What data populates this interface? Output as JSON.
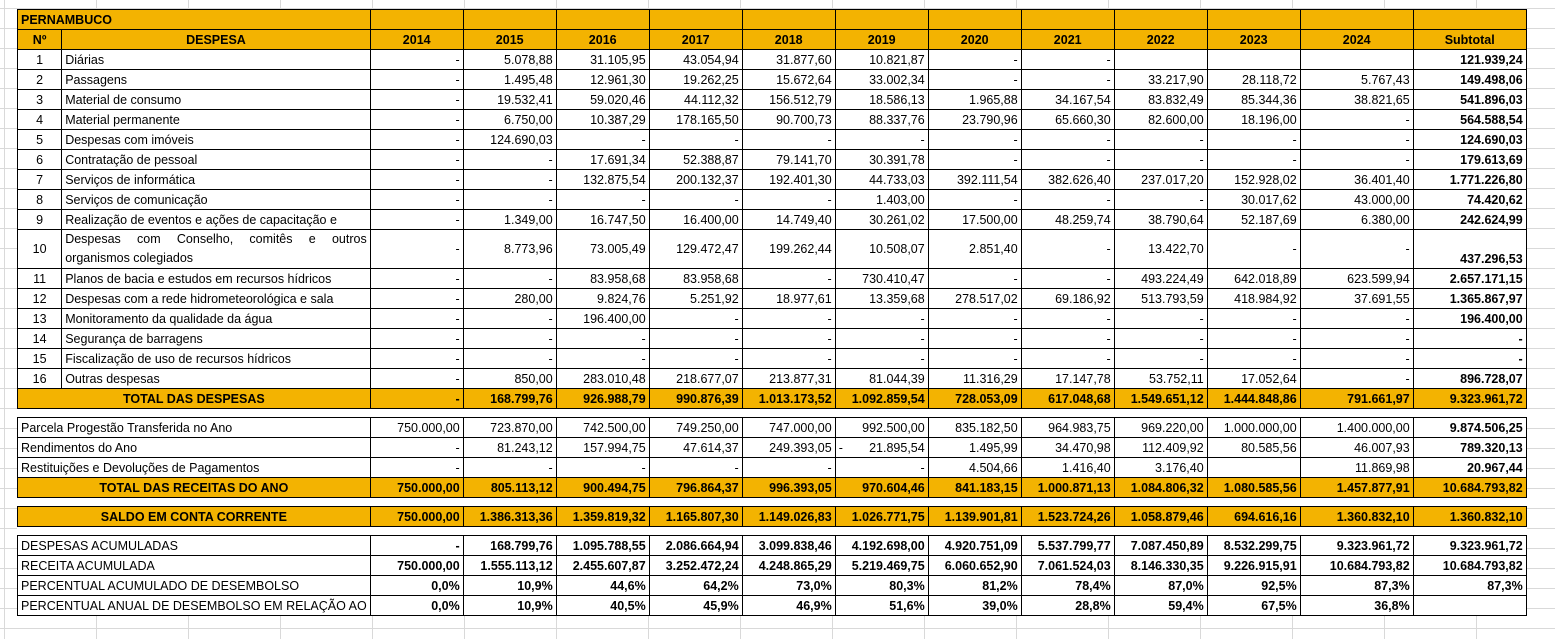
{
  "title": "PERNAMBUCO",
  "headers": [
    "Nº",
    "DESPESA",
    "2014",
    "2015",
    "2016",
    "2017",
    "2018",
    "2019",
    "2020",
    "2021",
    "2022",
    "2023",
    "2024",
    "Subtotal"
  ],
  "expenses": [
    {
      "n": "1",
      "name": "Diárias",
      "values": [
        "-",
        "5.078,88",
        "31.105,95",
        "43.054,94",
        "31.877,60",
        "10.821,87",
        "-",
        "-",
        "",
        "",
        "",
        ""
      ],
      "subtotal": "121.939,24"
    },
    {
      "n": "2",
      "name": "Passagens",
      "values": [
        "-",
        "1.495,48",
        "12.961,30",
        "19.262,25",
        "15.672,64",
        "33.002,34",
        "-",
        "-",
        "33.217,90",
        "28.118,72",
        "5.767,43",
        ""
      ],
      "subtotal": "149.498,06"
    },
    {
      "n": "3",
      "name": "Material de consumo",
      "values": [
        "-",
        "19.532,41",
        "59.020,46",
        "44.112,32",
        "156.512,79",
        "18.586,13",
        "1.965,88",
        "34.167,54",
        "83.832,49",
        "85.344,36",
        "38.821,65",
        ""
      ],
      "subtotal": "541.896,03"
    },
    {
      "n": "4",
      "name": "Material permanente",
      "values": [
        "-",
        "6.750,00",
        "10.387,29",
        "178.165,50",
        "90.700,73",
        "88.337,76",
        "23.790,96",
        "65.660,30",
        "82.600,00",
        "18.196,00",
        "-",
        ""
      ],
      "subtotal": "564.588,54"
    },
    {
      "n": "5",
      "name": "Despesas com imóveis",
      "values": [
        "-",
        "124.690,03",
        "-",
        "-",
        "-",
        "-",
        "-",
        "-",
        "-",
        "-",
        "-",
        ""
      ],
      "subtotal": "124.690,03"
    },
    {
      "n": "6",
      "name": "Contratação de pessoal",
      "values": [
        "-",
        "-",
        "17.691,34",
        "52.388,87",
        "79.141,70",
        "30.391,78",
        "-",
        "-",
        "-",
        "-",
        "-",
        ""
      ],
      "subtotal": "179.613,69"
    },
    {
      "n": "7",
      "name": "Serviços de informática",
      "values": [
        "-",
        "-",
        "132.875,54",
        "200.132,37",
        "192.401,30",
        "44.733,03",
        "392.111,54",
        "382.626,40",
        "237.017,20",
        "152.928,02",
        "36.401,40",
        ""
      ],
      "subtotal": "1.771.226,80"
    },
    {
      "n": "8",
      "name": "Serviços de comunicação",
      "values": [
        "-",
        "-",
        "-",
        "-",
        "-",
        "1.403,00",
        "-",
        "-",
        "-",
        "30.017,62",
        "43.000,00",
        ""
      ],
      "subtotal": "74.420,62"
    },
    {
      "n": "9",
      "name": "Realização de eventos e ações de capacitação e",
      "values": [
        "-",
        "1.349,00",
        "16.747,50",
        "16.400,00",
        "14.749,40",
        "30.261,02",
        "17.500,00",
        "48.259,74",
        "38.790,64",
        "52.187,69",
        "6.380,00",
        ""
      ],
      "subtotal": "242.624,99"
    },
    {
      "n": "10",
      "name": "Despesas com Conselho, comitês e outros organismos colegiados",
      "values": [
        "-",
        "8.773,96",
        "73.005,49",
        "129.472,47",
        "199.262,44",
        "10.508,07",
        "2.851,40",
        "-",
        "13.422,70",
        "-",
        "-",
        ""
      ],
      "subtotal": "437.296,53",
      "tall": true
    },
    {
      "n": "11",
      "name": "Planos de bacia e estudos em recursos hídricos",
      "values": [
        "-",
        "-",
        "83.958,68",
        "83.958,68",
        "-",
        "730.410,47",
        "-",
        "-",
        "493.224,49",
        "642.018,89",
        "623.599,94",
        ""
      ],
      "subtotal": "2.657.171,15"
    },
    {
      "n": "12",
      "name": "Despesas com a rede hidrometeorológica e sala",
      "values": [
        "-",
        "280,00",
        "9.824,76",
        "5.251,92",
        "18.977,61",
        "13.359,68",
        "278.517,02",
        "69.186,92",
        "513.793,59",
        "418.984,92",
        "37.691,55",
        ""
      ],
      "subtotal": "1.365.867,97"
    },
    {
      "n": "13",
      "name": "Monitoramento da qualidade da água",
      "values": [
        "-",
        "-",
        "196.400,00",
        "-",
        "-",
        "-",
        "-",
        "-",
        "-",
        "-",
        "-",
        ""
      ],
      "subtotal": "196.400,00"
    },
    {
      "n": "14",
      "name": "Segurança de barragens",
      "values": [
        "-",
        "-",
        "-",
        "-",
        "-",
        "-",
        "-",
        "-",
        "-",
        "-",
        "-",
        ""
      ],
      "subtotal": "-"
    },
    {
      "n": "15",
      "name": "Fiscalização de uso de recursos hídricos",
      "values": [
        "-",
        "-",
        "-",
        "-",
        "-",
        "-",
        "-",
        "-",
        "-",
        "-",
        "-",
        ""
      ],
      "subtotal": "-"
    },
    {
      "n": "16",
      "name": "Outras despesas",
      "values": [
        "-",
        "850,00",
        "283.010,48",
        "218.677,07",
        "213.877,31",
        "81.044,39",
        "11.316,29",
        "17.147,78",
        "53.752,11",
        "17.052,64",
        "-",
        ""
      ],
      "subtotal": "896.728,07"
    }
  ],
  "total_expenses": {
    "label": "TOTAL DAS DESPESAS",
    "values": [
      "-",
      "168.799,76",
      "926.988,79",
      "990.876,39",
      "1.013.173,52",
      "1.092.859,54",
      "728.053,09",
      "617.048,68",
      "1.549.651,12",
      "1.444.848,86",
      "791.661,97"
    ],
    "subtotal": "9.323.961,72"
  },
  "revenues": [
    {
      "name": "Parcela Progestão Transferida no Ano",
      "values": [
        "750.000,00",
        "723.870,00",
        "742.500,00",
        "749.250,00",
        "747.000,00",
        "992.500,00",
        "835.182,50",
        "964.983,75",
        "969.220,00",
        "1.000.000,00",
        "1.400.000,00"
      ],
      "subtotal": "9.874.506,25"
    },
    {
      "name": "Rendimentos do Ano",
      "values": [
        "-",
        "81.243,12",
        "157.994,75",
        "47.614,37",
        "249.393,05",
        "21.895,54",
        "1.495,99",
        "34.470,98",
        "112.409,92",
        "80.585,56",
        "46.007,93"
      ],
      "subtotal": "789.320,13",
      "neg_mark": "-"
    },
    {
      "name": "Restituições e Devoluções de Pagamentos",
      "values": [
        "-",
        "-",
        "-",
        "-",
        "-",
        "-",
        "4.504,66",
        "1.416,40",
        "3.176,40",
        "",
        "11.869,98"
      ],
      "subtotal": "20.967,44"
    }
  ],
  "total_revenues": {
    "label": "TOTAL DAS RECEITAS DO ANO",
    "values": [
      "750.000,00",
      "805.113,12",
      "900.494,75",
      "796.864,37",
      "996.393,05",
      "970.604,46",
      "841.183,15",
      "1.000.871,13",
      "1.084.806,32",
      "1.080.585,56",
      "1.457.877,91"
    ],
    "subtotal": "10.684.793,82"
  },
  "balance": {
    "label": "SALDO EM CONTA CORRENTE",
    "values": [
      "750.000,00",
      "1.386.313,36",
      "1.359.819,32",
      "1.165.807,30",
      "1.149.026,83",
      "1.026.771,75",
      "1.139.901,81",
      "1.523.724,26",
      "1.058.879,46",
      "694.616,16",
      "1.360.832,10"
    ],
    "subtotal": "1.360.832,10"
  },
  "summary": [
    {
      "name": "DESPESAS ACUMULADAS",
      "values": [
        "-",
        "168.799,76",
        "1.095.788,55",
        "2.086.664,94",
        "3.099.838,46",
        "4.192.698,00",
        "4.920.751,09",
        "5.537.799,77",
        "7.087.450,89",
        "8.532.299,75",
        "9.323.961,72"
      ],
      "subtotal": "9.323.961,72"
    },
    {
      "name": "RECEITA ACUMULADA",
      "values": [
        "750.000,00",
        "1.555.113,12",
        "2.455.607,87",
        "3.252.472,24",
        "4.248.865,29",
        "5.219.469,75",
        "6.060.652,90",
        "7.061.524,03",
        "8.146.330,35",
        "9.226.915,91",
        "10.684.793,82"
      ],
      "subtotal": "10.684.793,82"
    },
    {
      "name": "PERCENTUAL ACUMULADO DE DESEMBOLSO",
      "values": [
        "0,0%",
        "10,9%",
        "44,6%",
        "64,2%",
        "73,0%",
        "80,3%",
        "81,2%",
        "78,4%",
        "87,0%",
        "92,5%",
        "87,3%"
      ],
      "subtotal": "87,3%"
    },
    {
      "name": "PERCENTUAL ANUAL DE DESEMBOLSO EM RELAÇÃO AO",
      "values": [
        "0,0%",
        "10,9%",
        "40,5%",
        "45,9%",
        "46,9%",
        "51,6%",
        "39,0%",
        "28,8%",
        "59,4%",
        "67,5%",
        "36,8%"
      ],
      "subtotal": ""
    }
  ]
}
